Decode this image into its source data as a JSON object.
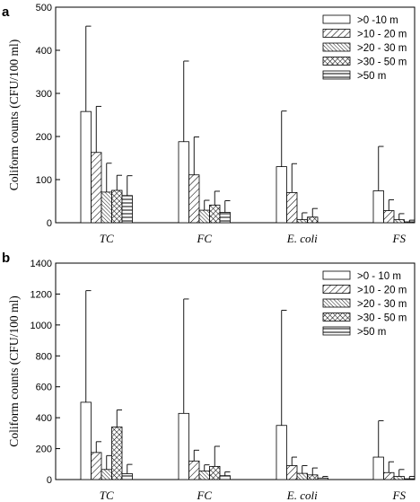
{
  "chart_data": [
    {
      "type": "bar",
      "panel_label": "a",
      "ylabel": "Coliform counts (CFU/100 ml)",
      "categories": [
        "TC",
        "FC",
        "E. coli",
        "FS"
      ],
      "ylim": [
        0,
        500
      ],
      "yticks": [
        0,
        100,
        200,
        300,
        400,
        500
      ],
      "legend_position": "top-right",
      "series": [
        {
          "name": ">0 -10 m",
          "pattern": "open",
          "values": [
            258,
            188,
            130,
            74
          ],
          "errors": [
            198,
            187,
            129,
            103
          ]
        },
        {
          "name": ">10 - 20 m",
          "pattern": "diag-wide",
          "values": [
            163,
            111,
            70,
            28
          ],
          "errors": [
            107,
            88,
            67,
            25
          ]
        },
        {
          "name": ">20 - 30 m",
          "pattern": "diag-dense",
          "values": [
            71,
            29,
            7,
            7
          ],
          "errors": [
            67,
            23,
            16,
            14
          ]
        },
        {
          "name": ">30 - 50 m",
          "pattern": "crosshatch",
          "values": [
            75,
            41,
            13,
            2
          ],
          "errors": [
            35,
            32,
            20,
            4
          ]
        },
        {
          "name": ">50 m",
          "pattern": "horizontal",
          "values": [
            63,
            24,
            0,
            0
          ],
          "errors": [
            46,
            27,
            0,
            0
          ]
        }
      ]
    },
    {
      "type": "bar",
      "panel_label": "b",
      "ylabel": "Coliform counts (CFU/100 ml)",
      "categories": [
        "TC",
        "FC",
        "E. coli",
        "FS"
      ],
      "ylim": [
        0,
        1400
      ],
      "yticks": [
        0,
        200,
        400,
        600,
        800,
        1000,
        1200,
        1400
      ],
      "legend_position": "top-right",
      "series": [
        {
          "name": ">0 - 10 m",
          "pattern": "open",
          "values": [
            500,
            428,
            350,
            145
          ],
          "errors": [
            722,
            740,
            745,
            235
          ]
        },
        {
          "name": ">10 - 20 m",
          "pattern": "diag-wide",
          "values": [
            175,
            120,
            90,
            45
          ],
          "errors": [
            70,
            70,
            55,
            70
          ]
        },
        {
          "name": ">20 - 30 m",
          "pattern": "diag-dense",
          "values": [
            65,
            55,
            40,
            20
          ],
          "errors": [
            90,
            40,
            50,
            45
          ]
        },
        {
          "name": ">30 - 50 m",
          "pattern": "crosshatch",
          "values": [
            340,
            85,
            30,
            5
          ],
          "errors": [
            110,
            130,
            45,
            15
          ]
        },
        {
          "name": ">50 m",
          "pattern": "horizontal",
          "values": [
            38,
            25,
            10,
            0
          ],
          "errors": [
            60,
            25,
            10,
            0
          ]
        }
      ]
    }
  ]
}
